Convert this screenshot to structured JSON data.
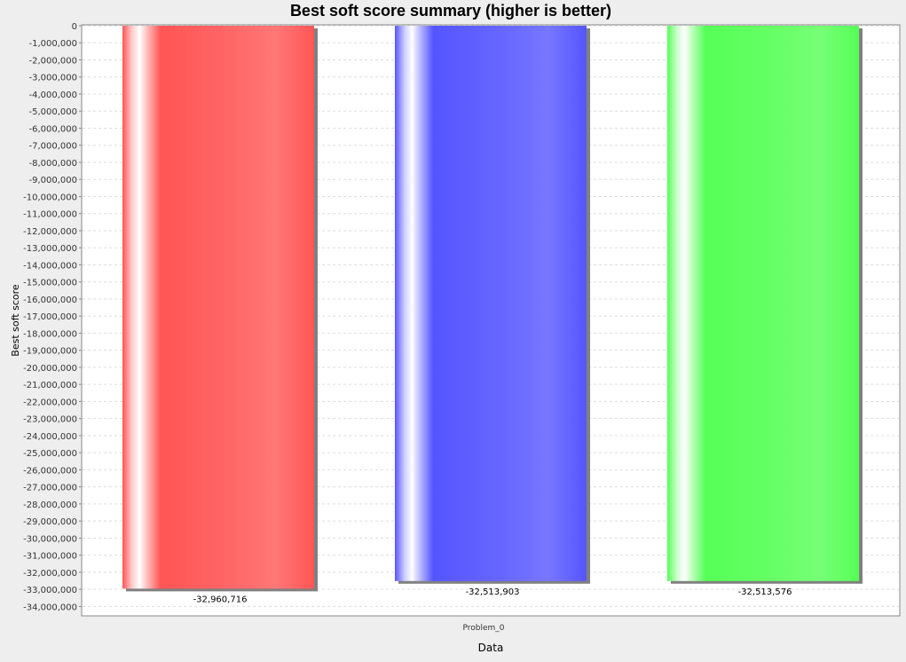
{
  "chart_data": {
    "type": "bar",
    "title": "Best soft score summary (higher is better)",
    "xlabel": "Data",
    "ylabel": "Best soft score",
    "categories": [
      "Problem_0"
    ],
    "ylim": [
      -34500000,
      0
    ],
    "ytick_step": 1000000,
    "grid": true,
    "orientation": "vertical-downward-from-zero",
    "series": [
      {
        "value": -32960716,
        "label": "-32,960,716",
        "color": "#ff5555"
      },
      {
        "value": -32513903,
        "label": "-32,513,903",
        "color": "#5555ff"
      },
      {
        "value": -32513576,
        "label": "-32,513,576",
        "color": "#55ff55"
      }
    ]
  }
}
